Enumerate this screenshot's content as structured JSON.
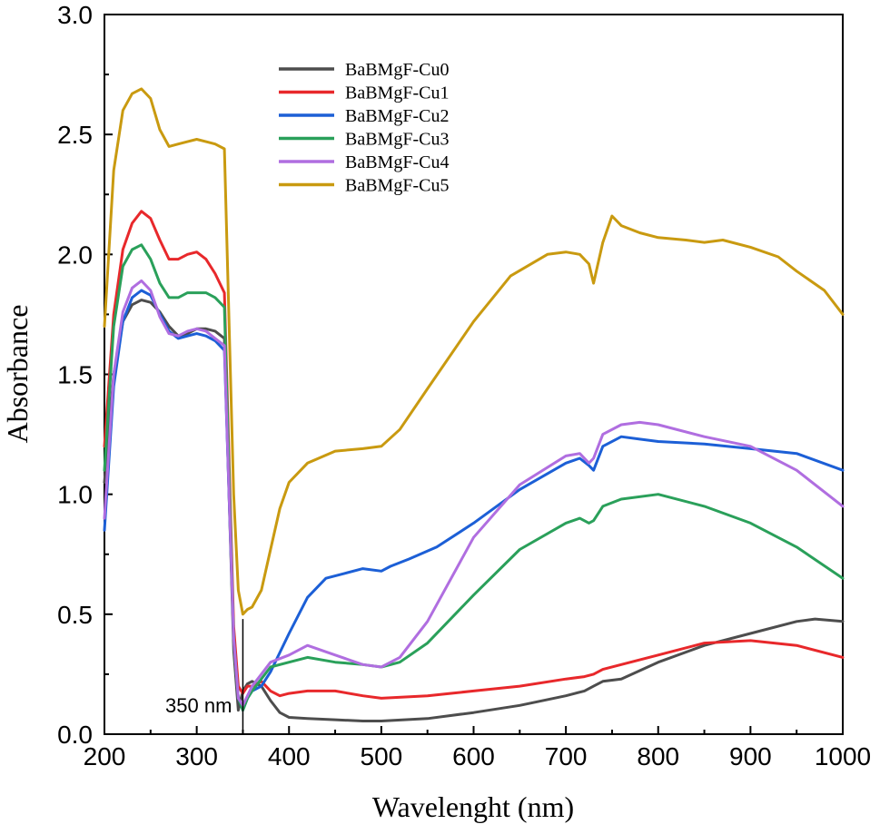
{
  "chart_data": {
    "type": "line",
    "xlabel": "Wavelenght (nm)",
    "ylabel": "Absorbance",
    "xlim": [
      200,
      1000
    ],
    "ylim": [
      0.0,
      3.0
    ],
    "xticks": [
      200,
      300,
      400,
      500,
      600,
      700,
      800,
      900,
      1000
    ],
    "xtick_labels": [
      "200",
      "300",
      "400",
      "500",
      "600",
      "700",
      "800",
      "900",
      "1000"
    ],
    "yticks": [
      0.0,
      0.5,
      1.0,
      1.5,
      2.0,
      2.5,
      3.0
    ],
    "ytick_labels": [
      "0.0",
      "0.5",
      "1.0",
      "1.5",
      "2.0",
      "2.5",
      "3.0"
    ],
    "grid": false,
    "legend_position": "top-center",
    "annotation": {
      "text": "350 nm",
      "x": 350
    },
    "series": [
      {
        "name": "BaBMgF-Cu0",
        "color": "#4d4d4d",
        "x": [
          200,
          210,
          220,
          230,
          240,
          250,
          260,
          270,
          280,
          290,
          300,
          310,
          320,
          330,
          340,
          345,
          350,
          355,
          360,
          370,
          380,
          390,
          400,
          420,
          450,
          480,
          500,
          550,
          600,
          650,
          700,
          720,
          730,
          740,
          760,
          800,
          850,
          900,
          950,
          970,
          1000
        ],
        "y": [
          1.05,
          1.5,
          1.72,
          1.79,
          1.81,
          1.8,
          1.76,
          1.7,
          1.66,
          1.67,
          1.69,
          1.69,
          1.68,
          1.65,
          0.35,
          0.1,
          0.18,
          0.21,
          0.22,
          0.2,
          0.14,
          0.09,
          0.07,
          0.065,
          0.06,
          0.055,
          0.055,
          0.065,
          0.09,
          0.12,
          0.16,
          0.18,
          0.2,
          0.22,
          0.23,
          0.3,
          0.37,
          0.42,
          0.47,
          0.48,
          0.47
        ]
      },
      {
        "name": "BaBMgF-Cu1",
        "color": "#e8282b",
        "x": [
          200,
          210,
          220,
          230,
          240,
          250,
          260,
          270,
          280,
          290,
          300,
          310,
          320,
          330,
          340,
          345,
          350,
          355,
          360,
          370,
          380,
          390,
          400,
          420,
          450,
          480,
          500,
          550,
          600,
          650,
          700,
          720,
          730,
          740,
          760,
          800,
          850,
          900,
          950,
          1000
        ],
        "y": [
          1.2,
          1.75,
          2.02,
          2.13,
          2.18,
          2.15,
          2.06,
          1.98,
          1.98,
          2.0,
          2.01,
          1.98,
          1.92,
          1.84,
          0.45,
          0.2,
          0.17,
          0.2,
          0.2,
          0.22,
          0.18,
          0.16,
          0.17,
          0.18,
          0.18,
          0.16,
          0.15,
          0.16,
          0.18,
          0.2,
          0.23,
          0.24,
          0.25,
          0.27,
          0.29,
          0.33,
          0.38,
          0.39,
          0.37,
          0.32
        ]
      },
      {
        "name": "BaBMgF-Cu2",
        "color": "#1c5fd6",
        "x": [
          200,
          210,
          220,
          230,
          240,
          250,
          260,
          270,
          280,
          290,
          300,
          310,
          320,
          330,
          340,
          345,
          350,
          355,
          360,
          370,
          380,
          390,
          400,
          420,
          440,
          460,
          480,
          500,
          510,
          530,
          560,
          600,
          650,
          700,
          715,
          725,
          730,
          740,
          760,
          780,
          800,
          850,
          900,
          950,
          1000
        ],
        "y": [
          0.85,
          1.45,
          1.72,
          1.82,
          1.85,
          1.83,
          1.75,
          1.68,
          1.65,
          1.66,
          1.67,
          1.66,
          1.64,
          1.6,
          0.4,
          0.15,
          0.1,
          0.15,
          0.18,
          0.2,
          0.26,
          0.34,
          0.42,
          0.57,
          0.65,
          0.67,
          0.69,
          0.68,
          0.7,
          0.73,
          0.78,
          0.88,
          1.02,
          1.13,
          1.15,
          1.12,
          1.1,
          1.2,
          1.24,
          1.23,
          1.22,
          1.21,
          1.19,
          1.17,
          1.1
        ]
      },
      {
        "name": "BaBMgF-Cu3",
        "color": "#2aa05a",
        "x": [
          200,
          210,
          220,
          230,
          240,
          250,
          260,
          270,
          280,
          290,
          300,
          310,
          320,
          330,
          340,
          345,
          350,
          355,
          360,
          370,
          380,
          400,
          420,
          450,
          480,
          500,
          520,
          550,
          600,
          650,
          700,
          715,
          725,
          730,
          740,
          760,
          800,
          850,
          900,
          950,
          1000
        ],
        "y": [
          1.1,
          1.7,
          1.95,
          2.02,
          2.04,
          1.98,
          1.88,
          1.82,
          1.82,
          1.84,
          1.84,
          1.84,
          1.82,
          1.78,
          0.4,
          0.15,
          0.1,
          0.15,
          0.18,
          0.23,
          0.28,
          0.3,
          0.32,
          0.3,
          0.29,
          0.28,
          0.3,
          0.38,
          0.58,
          0.77,
          0.88,
          0.9,
          0.88,
          0.89,
          0.95,
          0.98,
          1.0,
          0.95,
          0.88,
          0.78,
          0.65
        ]
      },
      {
        "name": "BaBMgF-Cu4",
        "color": "#b06ee0",
        "x": [
          200,
          210,
          220,
          230,
          240,
          250,
          260,
          270,
          280,
          290,
          300,
          310,
          320,
          330,
          340,
          345,
          350,
          355,
          360,
          370,
          380,
          400,
          420,
          450,
          480,
          500,
          520,
          550,
          600,
          650,
          700,
          715,
          725,
          730,
          740,
          760,
          780,
          800,
          850,
          900,
          950,
          1000
        ],
        "y": [
          0.9,
          1.5,
          1.76,
          1.86,
          1.89,
          1.85,
          1.74,
          1.67,
          1.66,
          1.68,
          1.69,
          1.68,
          1.65,
          1.62,
          0.4,
          0.15,
          0.12,
          0.16,
          0.2,
          0.25,
          0.3,
          0.33,
          0.37,
          0.33,
          0.29,
          0.28,
          0.32,
          0.47,
          0.82,
          1.04,
          1.16,
          1.17,
          1.13,
          1.15,
          1.25,
          1.29,
          1.3,
          1.29,
          1.24,
          1.2,
          1.1,
          0.95
        ]
      },
      {
        "name": "BaBMgF-Cu5",
        "color": "#c99a10",
        "x": [
          200,
          210,
          220,
          230,
          240,
          250,
          260,
          270,
          280,
          290,
          300,
          310,
          320,
          330,
          340,
          345,
          350,
          355,
          360,
          370,
          380,
          390,
          400,
          420,
          450,
          480,
          500,
          520,
          550,
          600,
          640,
          680,
          700,
          715,
          725,
          730,
          740,
          750,
          760,
          780,
          800,
          830,
          850,
          870,
          900,
          930,
          950,
          980,
          1000
        ],
        "y": [
          1.7,
          2.35,
          2.6,
          2.67,
          2.69,
          2.65,
          2.52,
          2.45,
          2.46,
          2.47,
          2.48,
          2.47,
          2.46,
          2.44,
          1.0,
          0.6,
          0.5,
          0.52,
          0.53,
          0.6,
          0.77,
          0.94,
          1.05,
          1.13,
          1.18,
          1.19,
          1.2,
          1.27,
          1.44,
          1.72,
          1.91,
          2.0,
          2.01,
          2.0,
          1.96,
          1.88,
          2.05,
          2.16,
          2.12,
          2.09,
          2.07,
          2.06,
          2.05,
          2.06,
          2.03,
          1.99,
          1.93,
          1.85,
          1.75
        ]
      }
    ]
  }
}
